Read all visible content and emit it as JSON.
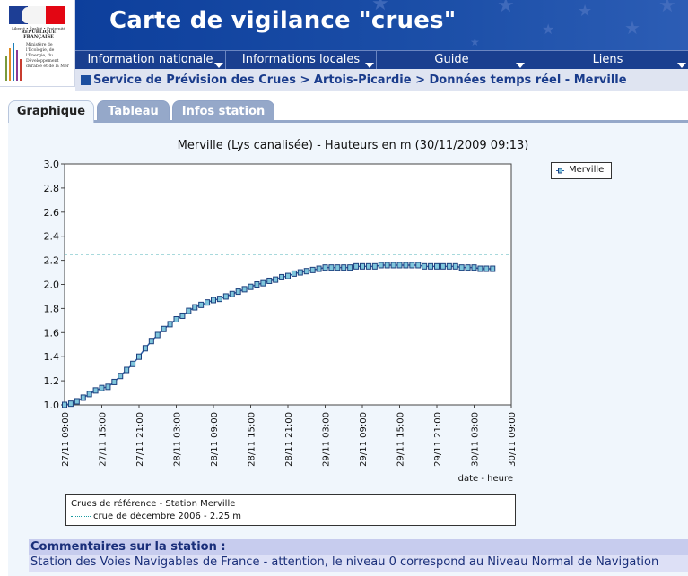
{
  "logo": {
    "republique_motto": "Liberté • Égalité • Fraternité",
    "republique_label": "RÉPUBLIQUE FRANÇAISE",
    "ministry_text": "Ministère de l'Écologie, de l'Énergie, du Développement durable et de la Mer",
    "flag_colors": [
      "#1d3e95",
      "#f4f4f4",
      "#e30613"
    ]
  },
  "header": {
    "title": "Carte de vigilance \"crues\""
  },
  "menu": {
    "items": [
      {
        "label": "Information nationale"
      },
      {
        "label": "Informations locales"
      },
      {
        "label": "Guide"
      },
      {
        "label": "Liens"
      }
    ]
  },
  "breadcrumb": {
    "text": "Service de Prévision des Crues > Artois-Picardie > Données temps réel - Merville"
  },
  "tabs": [
    {
      "label": "Graphique",
      "active": true
    },
    {
      "label": "Tableau",
      "active": false
    },
    {
      "label": "Infos station",
      "active": false
    }
  ],
  "chart_data": {
    "type": "line",
    "title": "Merville (Lys canalisée) - Hauteurs en m (30/11/2009 09:13)",
    "xlabel": "date - heure",
    "ylabel": "",
    "x_tick_labels": [
      "27/11 09:00",
      "27/11 15:00",
      "27/11 21:00",
      "28/11 03:00",
      "28/11 09:00",
      "28/11 15:00",
      "28/11 21:00",
      "29/11 03:00",
      "29/11 09:00",
      "29/11 15:00",
      "29/11 21:00",
      "30/11 03:00",
      "30/11 09:00"
    ],
    "x_range_hours": [
      0,
      72
    ],
    "ylim": [
      1.0,
      3.0
    ],
    "y_ticks": [
      "1.0",
      "1.2",
      "1.4",
      "1.6",
      "1.8",
      "2.0",
      "2.2",
      "2.4",
      "2.6",
      "2.8",
      "3.0"
    ],
    "grid": false,
    "legend_position": "top-right",
    "series": [
      {
        "name": "Merville",
        "color": "#2b5fa8",
        "marker_fill": "#7fc6dc",
        "x_hours": [
          0,
          1,
          2,
          3,
          4,
          5,
          6,
          7,
          8,
          9,
          10,
          11,
          12,
          13,
          14,
          15,
          16,
          17,
          18,
          19,
          20,
          21,
          22,
          23,
          24,
          25,
          26,
          27,
          28,
          29,
          30,
          31,
          32,
          33,
          34,
          35,
          36,
          37,
          38,
          39,
          40,
          41,
          42,
          43,
          44,
          45,
          46,
          47,
          48,
          49,
          50,
          51,
          52,
          53,
          54,
          55,
          56,
          57,
          58,
          59,
          60,
          61,
          62,
          63,
          64,
          65,
          66,
          67,
          68,
          69
        ],
        "values": [
          1.0,
          1.01,
          1.03,
          1.06,
          1.09,
          1.12,
          1.14,
          1.15,
          1.19,
          1.24,
          1.29,
          1.34,
          1.4,
          1.47,
          1.53,
          1.58,
          1.63,
          1.67,
          1.71,
          1.74,
          1.78,
          1.81,
          1.83,
          1.85,
          1.87,
          1.88,
          1.9,
          1.92,
          1.94,
          1.96,
          1.98,
          2.0,
          2.01,
          2.03,
          2.04,
          2.06,
          2.07,
          2.09,
          2.1,
          2.11,
          2.12,
          2.13,
          2.14,
          2.14,
          2.14,
          2.14,
          2.14,
          2.15,
          2.15,
          2.15,
          2.15,
          2.16,
          2.16,
          2.16,
          2.16,
          2.16,
          2.16,
          2.16,
          2.15,
          2.15,
          2.15,
          2.15,
          2.15,
          2.15,
          2.14,
          2.14,
          2.14,
          2.13,
          2.13,
          2.13
        ]
      }
    ],
    "reference": {
      "box_title": "Crues de référence - Station Merville",
      "label": "crue de décembre 2006 - 2.25 m",
      "value": 2.25,
      "color": "#1a9ba1"
    }
  },
  "comments": {
    "header": "Commentaires sur la station :",
    "body": "Station des Voies Navigables de France - attention, le niveau 0 correspond au Niveau Normal de Navigation"
  }
}
